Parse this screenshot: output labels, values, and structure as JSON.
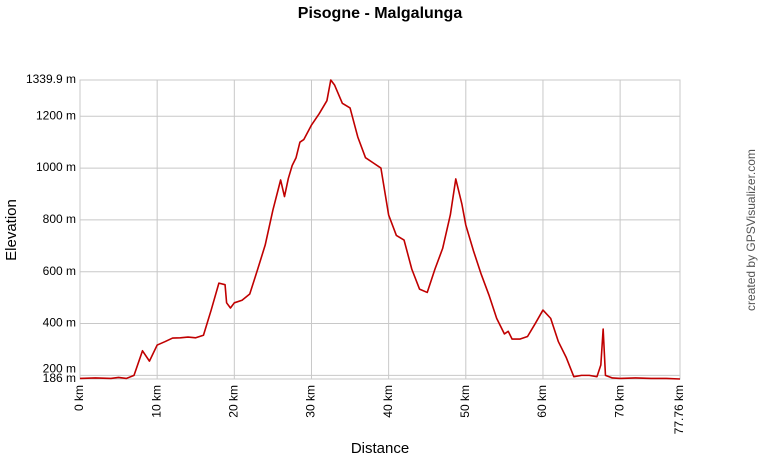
{
  "chart_data": {
    "type": "line",
    "title": "Pisogne - Malgalunga",
    "xlabel": "Distance",
    "ylabel": "Elevation",
    "credit": "created by GPSVisualizer.com",
    "grid": true,
    "xlim": [
      0,
      77.76
    ],
    "ylim": [
      186,
      1339.9
    ],
    "xticks": [
      {
        "value": 0,
        "label": "0 km"
      },
      {
        "value": 10,
        "label": "10 km"
      },
      {
        "value": 20,
        "label": "20 km"
      },
      {
        "value": 30,
        "label": "30 km"
      },
      {
        "value": 40,
        "label": "40 km"
      },
      {
        "value": 50,
        "label": "50 km"
      },
      {
        "value": 60,
        "label": "60 km"
      },
      {
        "value": 70,
        "label": "70 km"
      },
      {
        "value": 77.76,
        "label": "77.76 km"
      }
    ],
    "yticks": [
      {
        "value": 186,
        "label": "186 m"
      },
      {
        "value": 200,
        "label": "200 m"
      },
      {
        "value": 400,
        "label": "400 m"
      },
      {
        "value": 600,
        "label": "600 m"
      },
      {
        "value": 800,
        "label": "800 m"
      },
      {
        "value": 1000,
        "label": "1000 m"
      },
      {
        "value": 1200,
        "label": "1200 m"
      },
      {
        "value": 1339.9,
        "label": "1339.9 m"
      }
    ],
    "x": [
      0,
      2,
      4,
      5,
      6,
      7,
      8.1,
      9,
      10,
      11,
      12,
      13,
      14,
      15,
      16,
      17,
      18,
      18.8,
      19,
      19.5,
      20,
      21,
      22,
      23,
      24,
      25,
      26,
      26.5,
      27,
      27.5,
      28,
      28.5,
      29,
      30,
      31,
      32,
      32.5,
      33,
      34,
      35,
      36,
      37,
      38,
      39,
      40,
      41,
      42,
      43,
      44,
      45,
      46,
      47,
      48,
      48.7,
      49.5,
      50,
      51,
      52,
      53,
      54,
      55,
      55.5,
      56,
      57,
      58,
      59,
      60,
      61,
      62,
      63,
      64,
      65,
      66,
      67,
      67.5,
      67.8,
      68.1,
      69,
      70,
      72,
      74,
      76,
      77.76
    ],
    "series": [
      {
        "name": "Elevation",
        "color": "#c00000",
        "values": [
          188,
          190,
          188,
          192,
          188,
          200,
          295,
          255,
          317,
          330,
          344,
          345,
          348,
          345,
          355,
          452,
          556,
          550,
          480,
          460,
          480,
          490,
          514,
          607,
          703,
          838,
          954,
          890,
          960,
          1010,
          1040,
          1100,
          1110,
          1166,
          1210,
          1260,
          1339.9,
          1320,
          1250,
          1232,
          1120,
          1040,
          1020,
          1000,
          819,
          740,
          722,
          610,
          533,
          520,
          610,
          690,
          820,
          958,
          860,
          780,
          680,
          590,
          510,
          420,
          360,
          370,
          340,
          340,
          350,
          400,
          452,
          420,
          330,
          270,
          195,
          200,
          200,
          195,
          240,
          379,
          200,
          190,
          188,
          190,
          188,
          188,
          186
        ]
      }
    ]
  }
}
